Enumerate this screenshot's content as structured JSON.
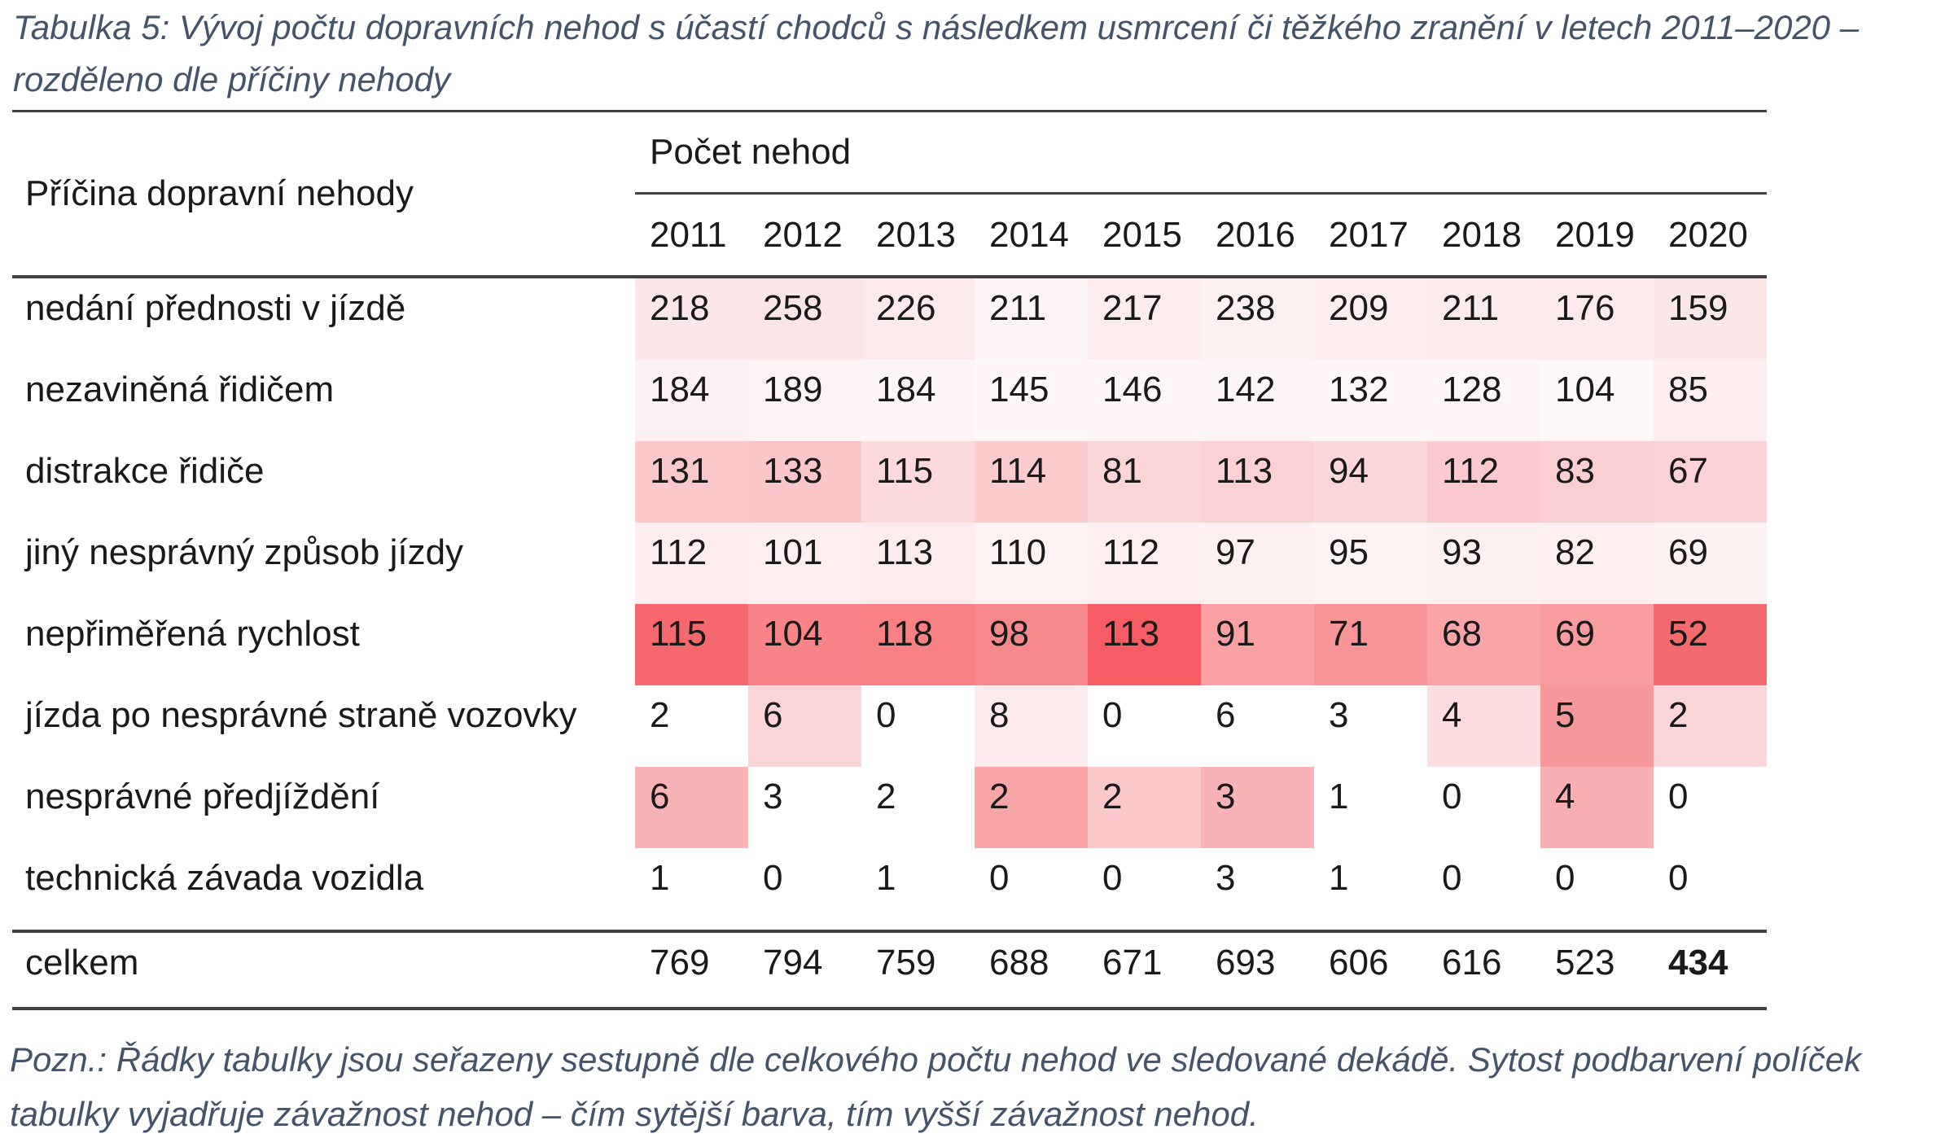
{
  "title": "Tabulka 5: Vývoj počtu dopravních nehod s účastí chodců s následkem usmrcení či těžkého zranění v letech 2011–2020 – rozděleno dle příčiny nehody",
  "table": {
    "cause_header": "Příčina dopravní nehody",
    "count_header": "Počet nehod",
    "years": [
      "2011",
      "2012",
      "2013",
      "2014",
      "2015",
      "2016",
      "2017",
      "2018",
      "2019",
      "2020"
    ],
    "rows": [
      {
        "label": "nedání přednosti v jízdě",
        "values": [
          218,
          258,
          226,
          211,
          217,
          238,
          209,
          211,
          176,
          159
        ],
        "colors": [
          "#fbe7e9",
          "#fbe5e7",
          "#fce9eb",
          "#fef4f5",
          "#fcecee",
          "#fdf0f1",
          "#fceeef",
          "#fcebed",
          "#fce9eb",
          "#fbe6e8"
        ]
      },
      {
        "label": "nezaviněná řidičem",
        "values": [
          184,
          189,
          184,
          145,
          146,
          142,
          132,
          128,
          104,
          85
        ],
        "colors": [
          "#fdf1f3",
          "#fdf3f4",
          "#fdf4f5",
          "#fef6f7",
          "#fef5f6",
          "#fdf4f5",
          "#fef6f7",
          "#fdf5f6",
          "#fef8f8",
          "#fcedef"
        ]
      },
      {
        "label": "distrakce řidiče",
        "values": [
          131,
          133,
          115,
          114,
          81,
          113,
          94,
          112,
          83,
          67
        ],
        "colors": [
          "#fbc9cc",
          "#fac6c9",
          "#fcd9db",
          "#fbcbce",
          "#fcd5d7",
          "#fbd1d4",
          "#fcd7d9",
          "#fbcace",
          "#fbced1",
          "#fbd2d5"
        ]
      },
      {
        "label": "jiný nesprávný způsob jízdy",
        "values": [
          112,
          101,
          113,
          110,
          112,
          97,
          95,
          93,
          82,
          69
        ],
        "colors": [
          "#fdedee",
          "#fdeff0",
          "#fdeced",
          "#fef2f3",
          "#fdeeef",
          "#fdf0f1",
          "#fef2f3",
          "#fdf0f1",
          "#fdeff0",
          "#fdf1f2"
        ]
      },
      {
        "label": "nepřiměřená rychlost",
        "values": [
          115,
          104,
          118,
          98,
          113,
          91,
          71,
          68,
          69,
          52
        ],
        "colors": [
          "#f5686d",
          "#f78488",
          "#f78185",
          "#f7898c",
          "#f55c63",
          "#f9a1a4",
          "#f79599",
          "#f9a4a6",
          "#f89ca0",
          "#f56a6f"
        ]
      },
      {
        "label": "jízda po nesprávné straně vozovky",
        "values": [
          2,
          6,
          0,
          8,
          0,
          6,
          3,
          4,
          5,
          2
        ],
        "colors": [
          "#ffffff",
          "#fbd4d6",
          "#ffffff",
          "#fdeaec",
          "#ffffff",
          "#ffffff",
          "#ffffff",
          "#fcdee0",
          "#f6979b",
          "#fbd6d8"
        ]
      },
      {
        "label": "nesprávné předjíždění",
        "values": [
          6,
          3,
          2,
          2,
          2,
          3,
          1,
          0,
          4,
          0
        ],
        "colors": [
          "#f9b3b6",
          "#ffffff",
          "#ffffff",
          "#f8a5a8",
          "#fbc9cb",
          "#f9b2b5",
          "#ffffff",
          "#ffffff",
          "#f9aeb1",
          "#ffffff"
        ]
      },
      {
        "label": "technická závada vozidla",
        "values": [
          1,
          0,
          1,
          0,
          0,
          3,
          1,
          0,
          0,
          0
        ],
        "colors": [
          "#ffffff",
          "#ffffff",
          "#ffffff",
          "#ffffff",
          "#ffffff",
          "#ffffff",
          "#ffffff",
          "#ffffff",
          "#ffffff",
          "#ffffff"
        ]
      }
    ],
    "total_row": {
      "label": "celkem",
      "values": [
        769,
        794,
        759,
        688,
        671,
        693,
        606,
        616,
        523,
        434
      ],
      "emphasis_last": true
    }
  },
  "footnote": "Pozn.: Řádky tabulky jsou seřazeny sestupně dle celkového počtu nehod ve sledované dekádě. Sytost podbarvení políček tabulky vyjadřuje závažnost nehod – čím sytější barva, tím vyšší závažnost nehod.",
  "colors": {
    "accent_text": "#44546a",
    "rule": "#404040",
    "heat_max": "#f55c63"
  }
}
